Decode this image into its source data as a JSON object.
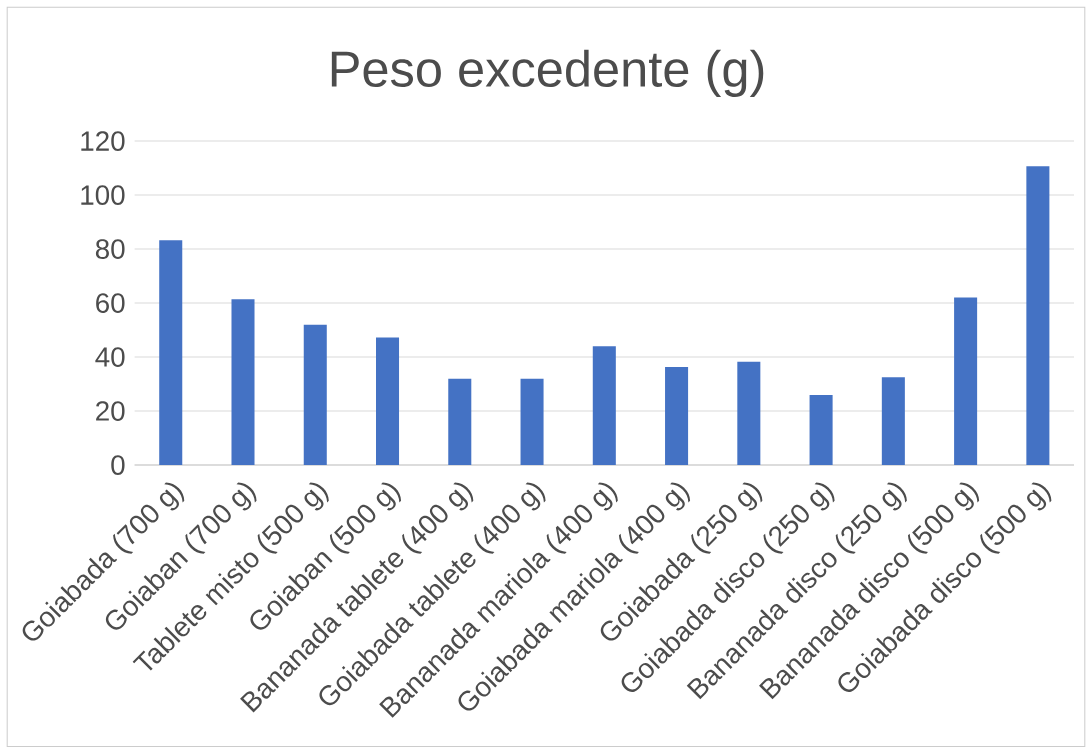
{
  "chart_data": {
    "type": "bar",
    "title": "Peso excedente (g)",
    "categories": [
      "Goiabada (700 g)",
      "Goiaban (700 g)",
      "Tablete misto (500 g)",
      "Goiaban (500 g)",
      "Bananada tablete (400 g)",
      "Goiabada tablete (400 g)",
      "Bananada mariola (400 g)",
      "Goiabada mariola (400 g)",
      "Goiabada (250 g)",
      "Goiabada disco (250 g)",
      "Bananada disco (250 g)",
      "Bananada disco (500 g)",
      "Goiabada disco (500 g)"
    ],
    "values": [
      83.3,
      61.4,
      52,
      47.2,
      32,
      32,
      44,
      36.3,
      38.3,
      25.9,
      32.5,
      62.1,
      110.7
    ],
    "color": "#4472c4",
    "ylim": [
      0,
      120
    ],
    "yticks": [
      0,
      20,
      40,
      60,
      80,
      100,
      120
    ],
    "grid": "y"
  }
}
